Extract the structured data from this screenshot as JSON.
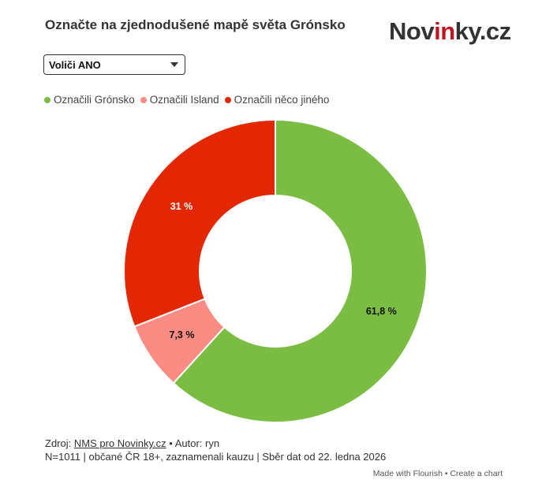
{
  "header": {
    "title": "Označte na zjednodušené mapě světa Grónsko",
    "brand_main": "Novinky.cz"
  },
  "filter": {
    "selected": "Voliči ANO"
  },
  "chart_data": {
    "type": "pie",
    "donut": true,
    "categories": [
      "Označili Grónsko",
      "Označili Island",
      "Označili něco jiného"
    ],
    "values": [
      61.8,
      7.3,
      31
    ],
    "data_labels": [
      "61,8 %",
      "7,3 %",
      "31 %"
    ],
    "colors": [
      "#7abd42",
      "#fb8c84",
      "#e32703"
    ],
    "legend_position": "top-left"
  },
  "footer": {
    "source_prefix": "Zdroj:",
    "source_link": "NMS pro Novinky.cz",
    "author": "• Autor: ryn",
    "note": "N=1011 | občané ČR 18+, zaznamenali kauzu | Sběr dat od 22. ledna 2026"
  },
  "flourish": {
    "made_with": "Made with Flourish",
    "separator": "•",
    "create": "Create a chart"
  }
}
